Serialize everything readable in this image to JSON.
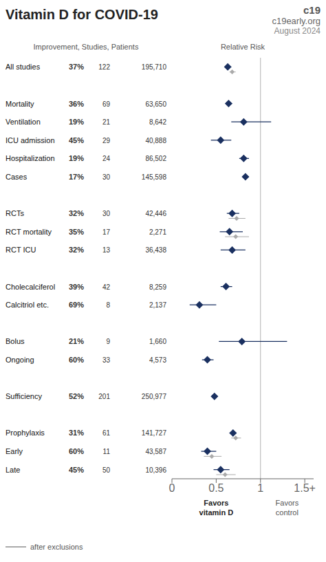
{
  "chart_data": {
    "type": "forest",
    "title": "Vitamin D for COVID-19",
    "xlabel": "Relative Risk",
    "annotations": {
      "site_mark": "c19",
      "site": "c19early.org",
      "date": "August 2024",
      "column_header": "Improvement, Studies, Patients",
      "favors_left": "Favors\nvitamin D",
      "favors_right": "Favors\ncontrol"
    },
    "categories": [
      "All studies",
      null,
      "Mortality",
      "Ventilation",
      "ICU admission",
      "Hospitalization",
      "Cases",
      null,
      "RCTs",
      "RCT mortality",
      "RCT ICU",
      null,
      "Cholecalciferol",
      "Calcitriol etc.",
      null,
      "Bolus",
      "Ongoing",
      null,
      "Sufficiency",
      null,
      "Prophylaxis",
      "Early",
      "Late"
    ],
    "columns": {
      "improvement": [
        "37%",
        null,
        "36%",
        "19%",
        "45%",
        "19%",
        "17%",
        null,
        "32%",
        "35%",
        "32%",
        null,
        "39%",
        "69%",
        null,
        "21%",
        "60%",
        null,
        "52%",
        null,
        "31%",
        "60%",
        "45%"
      ],
      "studies": [
        "122",
        null,
        "69",
        "21",
        "29",
        "24",
        "30",
        null,
        "30",
        "17",
        "13",
        null,
        "42",
        "8",
        null,
        "9",
        "33",
        null,
        "201",
        null,
        "61",
        "11",
        "50"
      ],
      "patients": [
        "195,710",
        null,
        "63,650",
        "8,642",
        "40,888",
        "86,502",
        "145,598",
        null,
        "42,446",
        "2,271",
        "36,438",
        null,
        "8,259",
        "2,137",
        null,
        "1,660",
        "4,573",
        null,
        "250,977",
        null,
        "141,727",
        "43,587",
        "10,396"
      ]
    },
    "series": [
      {
        "color": "#1a3060",
        "marker": "diamond",
        "values": [
          0.63,
          null,
          0.64,
          0.81,
          0.55,
          0.81,
          0.83,
          null,
          0.68,
          0.65,
          0.68,
          null,
          0.61,
          0.31,
          null,
          0.79,
          0.4,
          null,
          0.48,
          null,
          0.69,
          0.4,
          0.55
        ],
        "ci_lo": [
          0.6,
          null,
          0.61,
          0.67,
          0.44,
          0.76,
          0.8,
          null,
          0.62,
          0.54,
          0.55,
          null,
          0.55,
          0.2,
          null,
          0.53,
          0.34,
          null,
          0.45,
          null,
          0.65,
          0.33,
          0.47
        ],
        "ci_hi": [
          0.67,
          null,
          0.68,
          1.12,
          0.67,
          0.87,
          0.87,
          null,
          0.76,
          0.8,
          0.83,
          null,
          0.68,
          0.5,
          null,
          1.3,
          0.47,
          null,
          0.52,
          null,
          0.73,
          0.5,
          0.65
        ]
      },
      {
        "name": "after exclusions",
        "color": "#aaaaaa",
        "marker": "diamond",
        "values": [
          0.68,
          null,
          null,
          null,
          null,
          null,
          null,
          null,
          0.73,
          0.72,
          null,
          null,
          null,
          null,
          null,
          null,
          null,
          null,
          null,
          null,
          0.72,
          0.45,
          0.6
        ],
        "ci_lo": [
          0.65,
          null,
          null,
          null,
          null,
          null,
          null,
          null,
          0.64,
          0.6,
          null,
          null,
          null,
          null,
          null,
          null,
          null,
          null,
          null,
          null,
          0.67,
          0.36,
          0.5
        ],
        "ci_hi": [
          0.72,
          null,
          null,
          null,
          null,
          null,
          null,
          null,
          0.83,
          0.87,
          null,
          null,
          null,
          null,
          null,
          null,
          null,
          null,
          null,
          null,
          0.78,
          0.56,
          0.72
        ]
      }
    ],
    "xlim": [
      0,
      1.6
    ],
    "xticks": [
      0,
      0.5,
      1,
      {
        "value": 1.5,
        "label": "1.5+"
      }
    ],
    "reference_line": 1,
    "grid": false,
    "legend": "lower left"
  }
}
